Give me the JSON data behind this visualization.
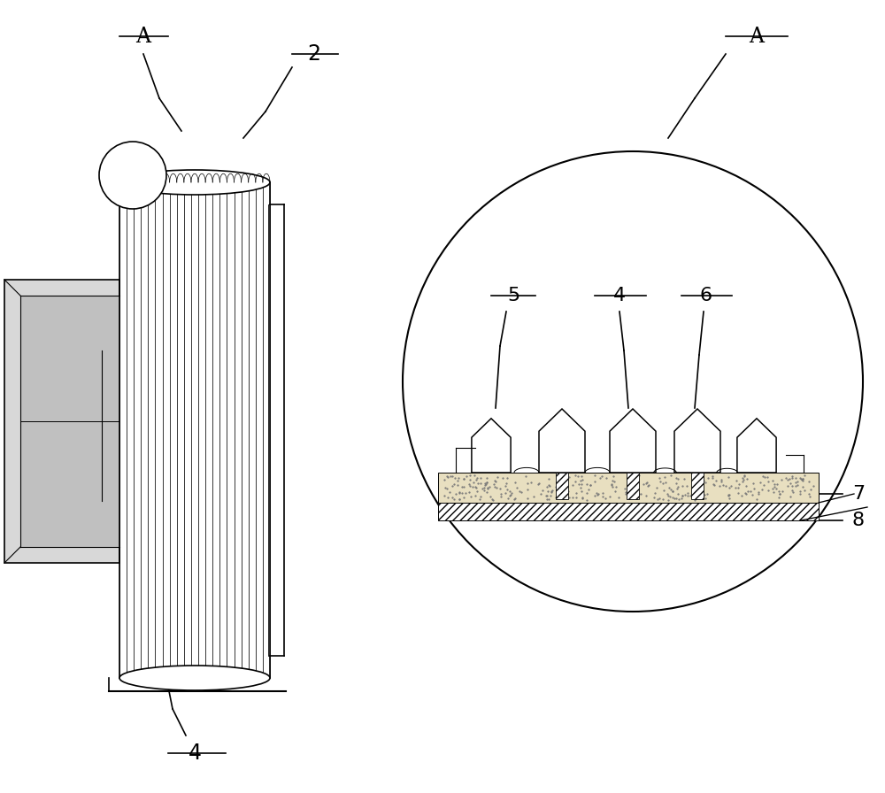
{
  "bg_color": "#ffffff",
  "line_color": "#000000",
  "label_A_left": "A",
  "label_A_right": "A",
  "label_2": "2",
  "label_4_left": "4",
  "label_4_right": "4",
  "label_5": "5",
  "label_6": "6",
  "label_7": "7",
  "label_8": "8",
  "figsize": [
    10.0,
    8.96
  ],
  "dpi": 100
}
